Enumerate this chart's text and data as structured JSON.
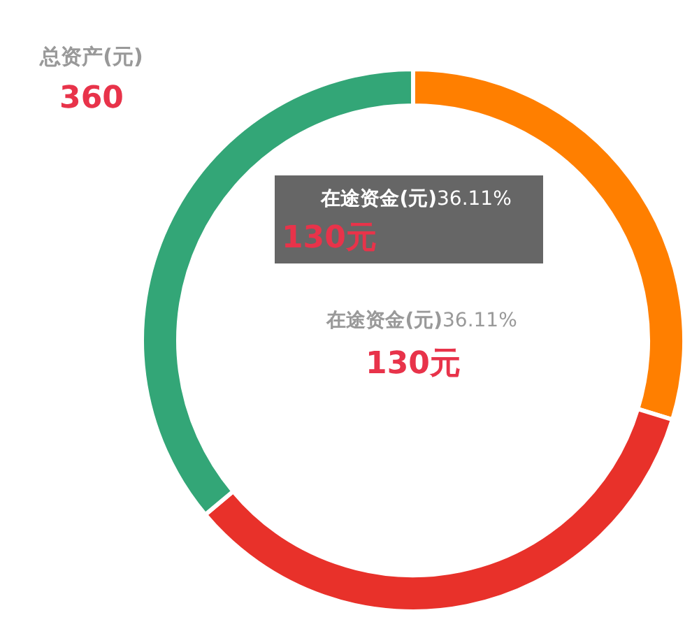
{
  "chart_data": {
    "type": "donut",
    "title": "总资产(元)",
    "subtitle": "360",
    "categories": [
      null,
      null,
      "在途资金(元)"
    ],
    "values": [
      29.72,
      34.17,
      36.11
    ],
    "value_labels": [
      null,
      null,
      "36.11%"
    ],
    "colors": [
      "#ff7f00",
      "#e8312a",
      "#33a677"
    ],
    "annotations": [
      "130元",
      "130元"
    ]
  }
}
